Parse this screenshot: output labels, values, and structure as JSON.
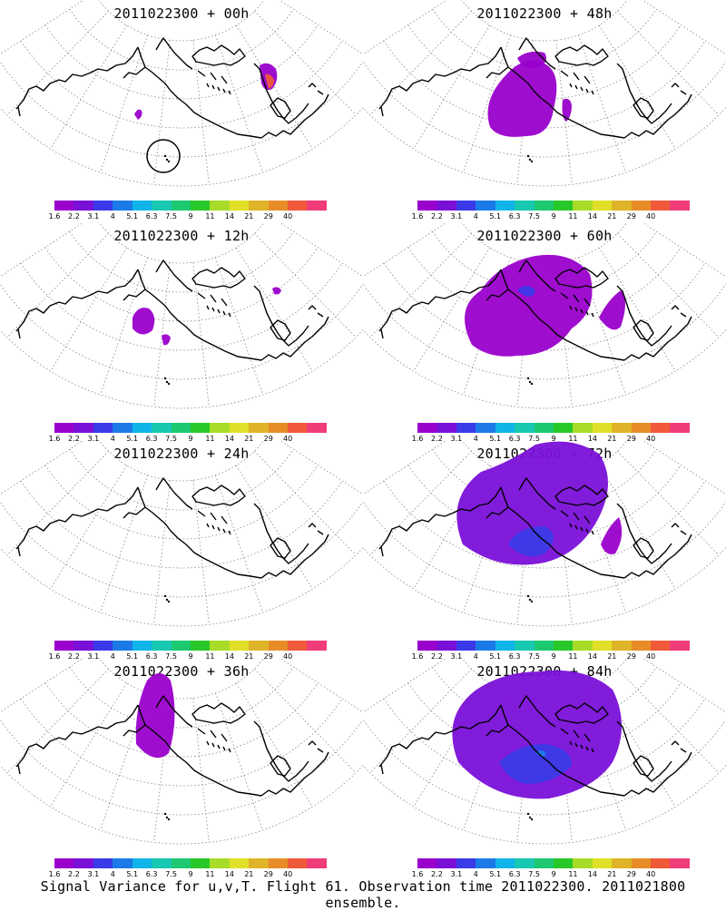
{
  "panels": [
    {
      "title": "2011022300 + 00h",
      "level": 0
    },
    {
      "title": "2011022300 + 48h",
      "level": 3
    },
    {
      "title": "2011022300 + 12h",
      "level": 1
    },
    {
      "title": "2011022300 + 60h",
      "level": 4
    },
    {
      "title": "2011022300 + 24h",
      "level": 1
    },
    {
      "title": "2011022300 + 72h",
      "level": 5
    },
    {
      "title": "2011022300 + 36h",
      "level": 2
    },
    {
      "title": "2011022300 + 84h",
      "level": 6
    }
  ],
  "colorbar": {
    "labels": [
      "1.6",
      "2.2",
      "3.1",
      "4",
      "5.1",
      "6.3",
      "7.5",
      "9",
      "11",
      "14",
      "21",
      "29",
      "40"
    ],
    "colors": [
      "#9a00cc",
      "#7a10d8",
      "#3a3ae8",
      "#1c7ae8",
      "#10b4e8",
      "#18c8b0",
      "#1cc870",
      "#28c828",
      "#a8dc28",
      "#e0e028",
      "#e0b428",
      "#e88c28",
      "#f05a3a",
      "#f03c78"
    ]
  },
  "caption": "Signal Variance for u,v,T. Flight 61. Observation time 2011022300. 2011021800 ensemble."
}
